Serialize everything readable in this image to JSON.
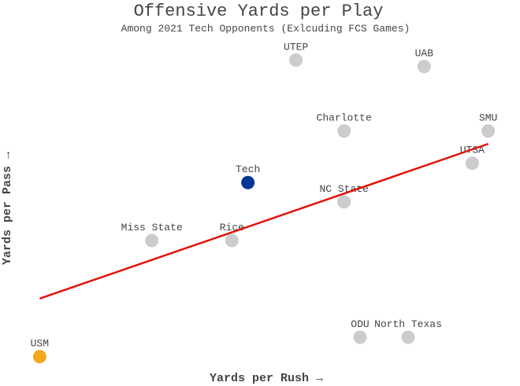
{
  "chart_data": {
    "type": "scatter",
    "title": "Offensive Yards per Play",
    "subtitle": "Among 2021 Tech Opponents (Exlcuding FCS Games)",
    "x_label": "Yards per Rush →",
    "y_label": "Yards per Pass →",
    "labels": [
      "USM",
      "Miss State",
      "Rice",
      "Tech",
      "UTEP",
      "Charlotte",
      "NC State",
      "ODU",
      "North Texas",
      "UAB",
      "UTSA",
      "SMU"
    ],
    "x": [
      3.1,
      3.8,
      4.3,
      4.4,
      4.7,
      5.0,
      5.0,
      5.1,
      5.4,
      5.5,
      5.8,
      5.9
    ],
    "y": [
      4.2,
      6.0,
      6.0,
      6.9,
      8.8,
      7.7,
      6.6,
      4.5,
      4.5,
      8.7,
      7.2,
      7.7
    ],
    "colors": [
      "#f5a81c",
      "#cccccc",
      "#cccccc",
      "#003594",
      "#cccccc",
      "#cccccc",
      "#cccccc",
      "#cccccc",
      "#cccccc",
      "#cccccc",
      "#cccccc",
      "#cccccc"
    ],
    "trendline": {
      "x": [
        3.1,
        5.9
      ],
      "y": [
        5.1,
        7.5
      ],
      "color": "#e3120b"
    },
    "xlim": [
      3.0,
      6.0
    ],
    "ylim": [
      4.0,
      9.0
    ]
  }
}
